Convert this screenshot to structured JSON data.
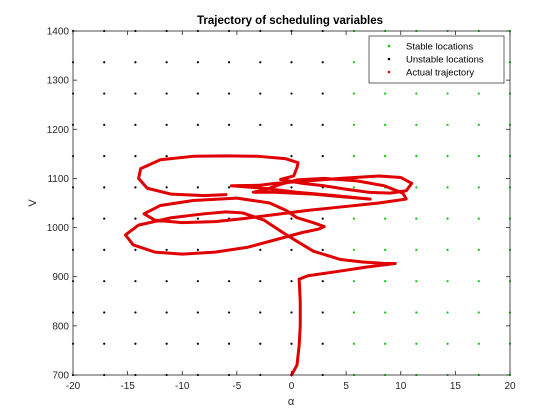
{
  "chart_data": {
    "type": "scatter",
    "title": "Trajectory of scheduling variables",
    "xlabel": "α",
    "ylabel": "V",
    "xlim": [
      -20,
      20
    ],
    "ylim": [
      700,
      1400
    ],
    "x_ticks": [
      -20,
      -15,
      -10,
      -5,
      0,
      5,
      10,
      15,
      20
    ],
    "y_ticks": [
      700,
      800,
      900,
      1000,
      1100,
      1200,
      1300,
      1400
    ],
    "x_tick_labels": [
      "-20",
      "-15",
      "-10",
      "-5",
      "0",
      "5",
      "10",
      "15",
      "20"
    ],
    "y_tick_labels": [
      "700",
      "800",
      "900",
      "1000",
      "1100",
      "1200",
      "1300",
      "1400"
    ],
    "grid": false,
    "legend_position": "top-right",
    "grid_points": {
      "alpha": [
        -20,
        -17.1429,
        -14.2857,
        -11.4286,
        -8.5714,
        -5.7143,
        -2.8571,
        0,
        2.8571,
        5.7143,
        8.5714,
        11.4286,
        14.2857,
        17.1429,
        20
      ],
      "V": [
        700,
        763.64,
        827.27,
        890.91,
        954.55,
        1018.18,
        1081.82,
        1145.45,
        1209.09,
        1272.73,
        1336.36,
        1400
      ],
      "stable_alpha_min": 3
    },
    "series": [
      {
        "name": "Stable locations",
        "color": "#00cc00",
        "marker": "dot"
      },
      {
        "name": "Unstable locations",
        "color": "#000000",
        "marker": "dot"
      },
      {
        "name": "Actual trajectory",
        "color": "#e00000",
        "marker": "dot",
        "points": [
          [
            0,
            700
          ],
          [
            0.5,
            720
          ],
          [
            0.7,
            760
          ],
          [
            0.8,
            800
          ],
          [
            0.8,
            850
          ],
          [
            0.7,
            895
          ],
          [
            1.5,
            902
          ],
          [
            4,
            910
          ],
          [
            7,
            920
          ],
          [
            9.5,
            927
          ],
          [
            8.5,
            927
          ],
          [
            6.5,
            930
          ],
          [
            4.5,
            935
          ],
          [
            2,
            952
          ],
          [
            0.5,
            972
          ],
          [
            -0.8,
            990
          ],
          [
            -2.5,
            1015
          ],
          [
            -4.5,
            1030
          ],
          [
            -6,
            1032
          ],
          [
            -8,
            1028
          ],
          [
            -11,
            1020
          ],
          [
            -14,
            1005
          ],
          [
            -15.2,
            985
          ],
          [
            -14.5,
            965
          ],
          [
            -12.5,
            950
          ],
          [
            -10,
            946
          ],
          [
            -7,
            950
          ],
          [
            -4,
            960
          ],
          [
            -1,
            978
          ],
          [
            1,
            990
          ],
          [
            2.5,
            997
          ],
          [
            3,
            1002
          ],
          [
            2,
            1010
          ],
          [
            0.5,
            1020
          ],
          [
            -0.5,
            1035
          ],
          [
            -2,
            1050
          ],
          [
            -5,
            1060
          ],
          [
            -9,
            1055
          ],
          [
            -12,
            1045
          ],
          [
            -13.5,
            1028
          ],
          [
            -12.5,
            1015
          ],
          [
            -10,
            1010
          ],
          [
            -7,
            1012
          ],
          [
            -4.5,
            1018
          ],
          [
            -2,
            1025
          ],
          [
            1.5,
            1035
          ],
          [
            5,
            1043
          ],
          [
            8,
            1050
          ],
          [
            10.5,
            1058
          ],
          [
            10.2,
            1070
          ],
          [
            8.5,
            1085
          ],
          [
            6,
            1095
          ],
          [
            3,
            1100
          ],
          [
            0.5,
            1097
          ],
          [
            -1,
            1088
          ],
          [
            -2.5,
            1076
          ],
          [
            -3.5,
            1072
          ],
          [
            -1.5,
            1072
          ],
          [
            2,
            1068
          ],
          [
            5,
            1062
          ],
          [
            7.2,
            1058
          ],
          [
            4,
            1065
          ],
          [
            0.5,
            1072
          ],
          [
            -2.5,
            1080
          ],
          [
            -5.5,
            1085
          ],
          [
            -3,
            1086
          ],
          [
            -1.5,
            1090
          ],
          [
            1.5,
            1095
          ],
          [
            4.5,
            1100
          ],
          [
            8,
            1105
          ],
          [
            10,
            1102
          ],
          [
            11,
            1090
          ],
          [
            10.5,
            1075
          ],
          [
            9,
            1070
          ],
          [
            7,
            1072
          ],
          [
            5,
            1078
          ],
          [
            3,
            1085
          ],
          [
            1,
            1090
          ],
          [
            -1,
            1098
          ],
          [
            0.2,
            1105
          ],
          [
            0.5,
            1122
          ],
          [
            0.6,
            1132
          ],
          [
            -0.5,
            1140
          ],
          [
            -3,
            1145
          ],
          [
            -6,
            1146
          ],
          [
            -9,
            1145
          ],
          [
            -12,
            1138
          ],
          [
            -13.8,
            1120
          ],
          [
            -14,
            1100
          ],
          [
            -13.2,
            1080
          ],
          [
            -11,
            1068
          ],
          [
            -8,
            1065
          ],
          [
            -6,
            1067
          ]
        ]
      }
    ]
  }
}
